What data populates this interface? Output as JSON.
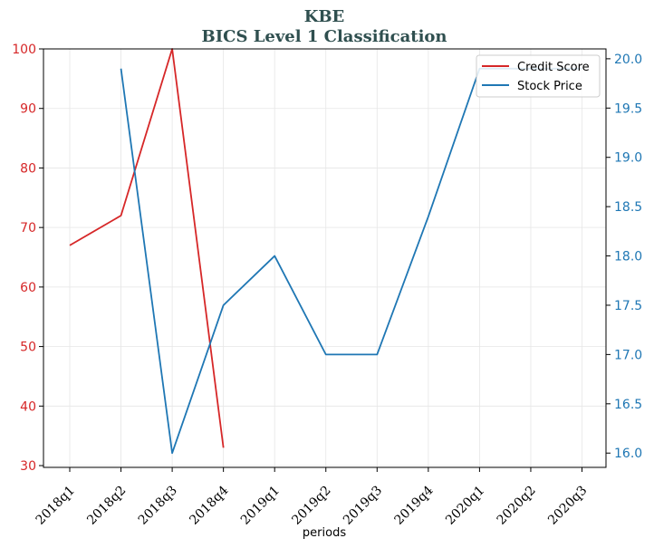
{
  "chart_data": {
    "type": "line",
    "title": "KBE",
    "subtitle": "BICS Level 1 Classification",
    "xlabel": "periods",
    "categories": [
      "2018q1",
      "2018q2",
      "2018q3",
      "2018q4",
      "2019q1",
      "2019q2",
      "2019q3",
      "2019q4",
      "2020q1",
      "2020q2",
      "2020q3"
    ],
    "y_left": {
      "range": [
        29.7,
        100
      ],
      "ticks": [
        30,
        40,
        50,
        60,
        70,
        80,
        90,
        100
      ],
      "tick_labels": [
        "30",
        "40",
        "50",
        "60",
        "70",
        "80",
        "90",
        "100"
      ],
      "color": "#d62728"
    },
    "y_right": {
      "range": [
        15.855,
        20.1
      ],
      "ticks": [
        16.0,
        16.5,
        17.0,
        17.5,
        18.0,
        18.5,
        19.0,
        19.5,
        20.0
      ],
      "tick_labels": [
        "16.0",
        "16.5",
        "17.0",
        "17.5",
        "18.0",
        "18.5",
        "19.0",
        "19.5",
        "20.0"
      ],
      "color": "#1f77b4"
    },
    "grid": true,
    "legend_position": "top-right",
    "series": [
      {
        "name": "Credit Score",
        "axis": "left",
        "color": "#d62728",
        "values": [
          67,
          72,
          100,
          33,
          null,
          null,
          null,
          null,
          null,
          null,
          null
        ]
      },
      {
        "name": "Stock Price",
        "axis": "right",
        "color": "#1f77b4",
        "values": [
          null,
          19.9,
          16.0,
          17.5,
          18.0,
          17.0,
          17.0,
          18.4,
          19.9,
          19.9,
          19.9
        ]
      }
    ]
  }
}
